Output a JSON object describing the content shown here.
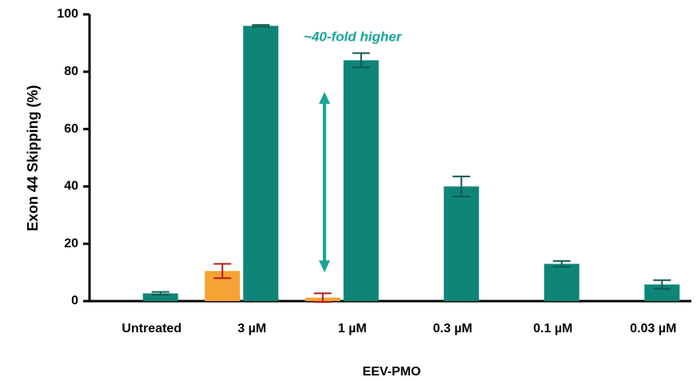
{
  "chart_data": {
    "type": "bar",
    "x_label": "EEV-PMO",
    "y_label": "Exon 44 Skipping (%)",
    "annotation": "~40-fold higher",
    "categories": [
      "Untreated",
      "3 µM",
      "1 µM",
      "0.3 µM",
      "0.1 µM",
      "0.03 µM"
    ],
    "series": [
      {
        "color": "#f6a234",
        "error_color": "#b71c1c",
        "values": [
          null,
          10.5,
          1.2,
          null,
          null,
          null
        ],
        "errors": [
          null,
          2.5,
          1.5,
          null,
          null,
          null
        ]
      },
      {
        "color": "#0f8577",
        "error_color": "#0d5b52",
        "values": [
          2.7,
          96,
          84,
          40,
          13,
          5.8
        ],
        "errors": [
          0.5,
          0.3,
          2.5,
          3.5,
          1,
          1.5
        ]
      }
    ],
    "annotation_color": "#1aa596",
    "ylim": [
      0,
      100
    ],
    "yticks": [
      0,
      20,
      40,
      60,
      80,
      100
    ]
  }
}
